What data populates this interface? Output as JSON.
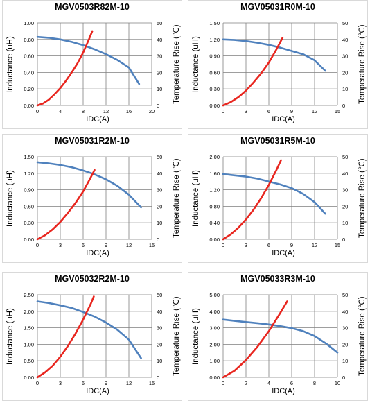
{
  "colors": {
    "inductance": "#4f81bd",
    "temperature": "#e8261f",
    "grid": "#7f7f7f",
    "frame": "#d9d9d9"
  },
  "chart_data": [
    {
      "type": "line",
      "title": "MGV0503R82M-10",
      "xlabel": "IDC(A)",
      "ylabel": "Inductance (uH)",
      "y2label": "Temperature Rise (℃)",
      "xlim": [
        0,
        20
      ],
      "xticks": [
        "0",
        "4",
        "8",
        "12",
        "16",
        "20"
      ],
      "ylim": [
        0,
        1.0
      ],
      "yticks": [
        "0.00",
        "0.20",
        "0.40",
        "0.60",
        "0.80",
        "1.00"
      ],
      "y2lim": [
        0,
        50
      ],
      "y2ticks": [
        "0",
        "10",
        "20",
        "30",
        "40",
        "50"
      ],
      "grid": true,
      "series": [
        {
          "axis": "left",
          "x": [
            0,
            2,
            4,
            6,
            8,
            10,
            12,
            14,
            16,
            17.8
          ],
          "y": [
            0.83,
            0.82,
            0.8,
            0.77,
            0.73,
            0.68,
            0.62,
            0.55,
            0.46,
            0.26
          ]
        },
        {
          "axis": "right",
          "x": [
            0,
            1,
            2,
            3,
            4,
            5,
            6,
            7,
            8,
            9,
            9.6
          ],
          "y": [
            0,
            1.2,
            3.5,
            6.8,
            10.5,
            15,
            20,
            25.5,
            32,
            40,
            45
          ]
        }
      ]
    },
    {
      "type": "line",
      "title": "MGV05031R0M-10",
      "xlabel": "IDC(A)",
      "ylabel": "Inductance (uH)",
      "y2label": "Temperature Rise (℃)",
      "xlim": [
        0,
        15
      ],
      "xticks": [
        "0",
        "3",
        "6",
        "9",
        "12",
        "15"
      ],
      "ylim": [
        0,
        1.5
      ],
      "yticks": [
        "0.00",
        "0.30",
        "0.60",
        "0.90",
        "1.20",
        "1.50"
      ],
      "y2lim": [
        0,
        50
      ],
      "y2ticks": [
        "0",
        "10",
        "20",
        "30",
        "40",
        "50"
      ],
      "grid": true,
      "series": [
        {
          "axis": "left",
          "x": [
            0,
            1.5,
            3,
            4.5,
            6,
            7.5,
            9,
            10.5,
            12,
            13.4
          ],
          "y": [
            1.2,
            1.19,
            1.17,
            1.14,
            1.1,
            1.05,
            0.99,
            0.93,
            0.82,
            0.63
          ]
        },
        {
          "axis": "right",
          "x": [
            0,
            1,
            2,
            3,
            4,
            5,
            6,
            7,
            7.8
          ],
          "y": [
            0,
            2,
            5,
            9,
            14,
            19.5,
            26,
            34,
            41
          ]
        }
      ]
    },
    {
      "type": "line",
      "title": "MGV05031R2M-10",
      "xlabel": "IDC(A)",
      "ylabel": "Inductance (uH)",
      "y2label": "Temperature Rise (℃)",
      "xlim": [
        0,
        15
      ],
      "xticks": [
        "0",
        "3",
        "6",
        "9",
        "12",
        "15"
      ],
      "ylim": [
        0,
        1.5
      ],
      "yticks": [
        "0.00",
        "0.30",
        "0.60",
        "0.90",
        "1.20",
        "1.50"
      ],
      "y2lim": [
        0,
        50
      ],
      "y2ticks": [
        "0",
        "10",
        "20",
        "30",
        "40",
        "50"
      ],
      "grid": true,
      "series": [
        {
          "axis": "left",
          "x": [
            0,
            1.5,
            3,
            4.5,
            6,
            7.5,
            9,
            10.5,
            12,
            13.6
          ],
          "y": [
            1.4,
            1.38,
            1.35,
            1.31,
            1.25,
            1.18,
            1.09,
            0.97,
            0.81,
            0.58
          ]
        },
        {
          "axis": "right",
          "x": [
            0,
            1,
            2,
            3,
            4,
            5,
            6,
            7,
            7.5
          ],
          "y": [
            0,
            2.5,
            6,
            10.5,
            16,
            22,
            29,
            37.5,
            42
          ]
        }
      ]
    },
    {
      "type": "line",
      "title": "MGV05031R5M-10",
      "xlabel": "IDC(A)",
      "ylabel": "Inductance (uH)",
      "y2label": "Temperature Rise (℃)",
      "xlim": [
        0,
        15
      ],
      "xticks": [
        "0",
        "3",
        "6",
        "9",
        "12",
        "15"
      ],
      "ylim": [
        0,
        2.0
      ],
      "yticks": [
        "0.00",
        "0.40",
        "0.80",
        "1.20",
        "1.60",
        "2.00"
      ],
      "y2lim": [
        0,
        50
      ],
      "y2ticks": [
        "0",
        "10",
        "20",
        "30",
        "40",
        "50"
      ],
      "grid": true,
      "series": [
        {
          "axis": "left",
          "x": [
            0,
            1.5,
            3,
            4.5,
            6,
            7.5,
            9,
            10.5,
            12,
            13.4
          ],
          "y": [
            1.58,
            1.55,
            1.52,
            1.47,
            1.4,
            1.33,
            1.24,
            1.1,
            0.9,
            0.62
          ]
        },
        {
          "axis": "right",
          "x": [
            0,
            1,
            2,
            3,
            4,
            5,
            6,
            7,
            7.6
          ],
          "y": [
            0,
            3,
            7,
            12,
            18,
            25,
            33,
            42,
            48
          ]
        }
      ]
    },
    {
      "type": "line",
      "title": "MGV05032R2M-10",
      "xlabel": "IDC(A)",
      "ylabel": "Inductance (uH)",
      "y2label": "Temperature Rise (℃)",
      "xlim": [
        0,
        15
      ],
      "xticks": [
        "0",
        "3",
        "6",
        "9",
        "12",
        "15"
      ],
      "ylim": [
        0,
        2.5
      ],
      "yticks": [
        "0.00",
        "0.50",
        "1.00",
        "1.50",
        "2.00",
        "2.50"
      ],
      "y2lim": [
        0,
        50
      ],
      "y2ticks": [
        "0",
        "10",
        "20",
        "30",
        "40",
        "50"
      ],
      "grid": true,
      "series": [
        {
          "axis": "left",
          "x": [
            0,
            1.5,
            3,
            4.5,
            6,
            7.5,
            9,
            10.5,
            12,
            13.6
          ],
          "y": [
            2.3,
            2.25,
            2.18,
            2.1,
            1.98,
            1.84,
            1.66,
            1.44,
            1.14,
            0.58
          ]
        },
        {
          "axis": "right",
          "x": [
            0,
            1,
            2,
            3,
            4,
            5,
            6,
            7,
            7.4
          ],
          "y": [
            0,
            3,
            7,
            12.5,
            19,
            26.5,
            35,
            44.5,
            49
          ]
        }
      ]
    },
    {
      "type": "line",
      "title": "MGV05033R3M-10",
      "xlabel": "IDC(A)",
      "ylabel": "Inductance (uH)",
      "y2label": "Temperature Rise (℃)",
      "xlim": [
        0,
        10
      ],
      "xticks": [
        "0",
        "2",
        "4",
        "6",
        "8",
        "10"
      ],
      "ylim": [
        0,
        5.0
      ],
      "yticks": [
        "0.00",
        "1.00",
        "2.00",
        "3.00",
        "4.00",
        "5.00"
      ],
      "y2lim": [
        0,
        50
      ],
      "y2ticks": [
        "0",
        "10",
        "20",
        "30",
        "40",
        "50"
      ],
      "grid": true,
      "series": [
        {
          "axis": "left",
          "x": [
            0,
            1,
            2,
            3,
            4,
            5,
            6,
            7,
            8,
            9,
            10
          ],
          "y": [
            3.5,
            3.42,
            3.35,
            3.28,
            3.2,
            3.1,
            2.98,
            2.8,
            2.5,
            2.05,
            1.5
          ]
        },
        {
          "axis": "right",
          "x": [
            0,
            1,
            2,
            3,
            4,
            5,
            5.6
          ],
          "y": [
            0,
            4,
            10.5,
            18.5,
            28,
            39,
            46
          ]
        }
      ]
    }
  ]
}
